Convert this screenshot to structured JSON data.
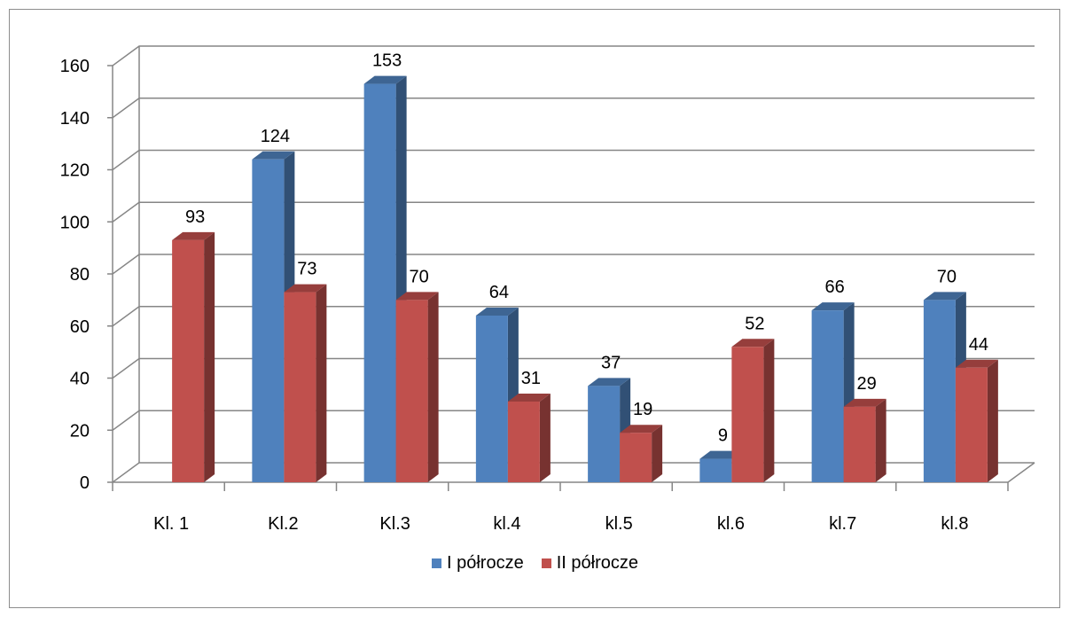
{
  "chart_data": {
    "type": "bar",
    "categories": [
      "Kl. 1",
      "Kl.2",
      "Kl.3",
      "kl.4",
      "kl.5",
      "kl.6",
      "kl.7",
      "kl.8"
    ],
    "series": [
      {
        "name": "I półrocze",
        "values": [
          null,
          124,
          153,
          64,
          37,
          9,
          66,
          70
        ],
        "color": "#4f81bd"
      },
      {
        "name": "II półrocze",
        "values": [
          93,
          73,
          70,
          31,
          19,
          52,
          29,
          44
        ],
        "color": "#c0504d"
      }
    ],
    "yticks": [
      0,
      20,
      40,
      60,
      80,
      100,
      120,
      140,
      160
    ],
    "ylim": [
      0,
      160
    ],
    "grid": true,
    "legend": "bottom",
    "style": "3d-clustered-column"
  }
}
